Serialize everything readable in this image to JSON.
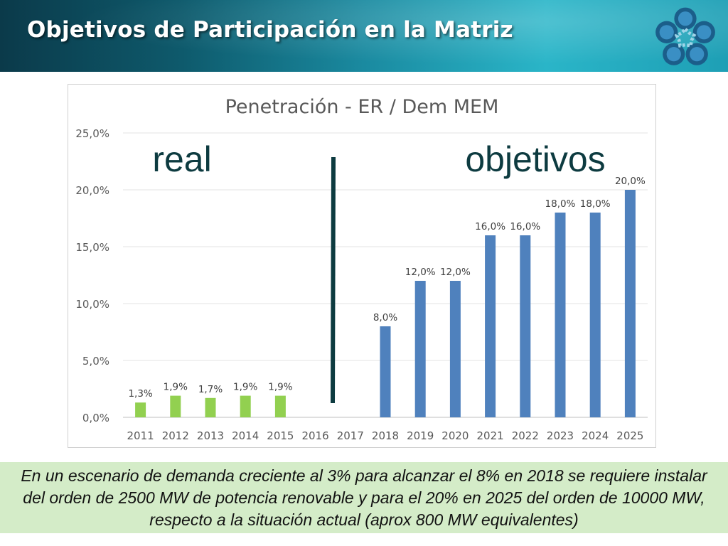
{
  "slide": {
    "title": "Objetivos de Participación en la Matriz",
    "note": "En un escenario de demanda creciente al 3% para alcanzar el 8% en 2018  se requiere instalar del orden de 2500 MW de potencia renovable y para el 20% en 2025 del orden de 10000 MW, respecto a la situación actual (aprox 800 MW equivalentes)"
  },
  "logo": {
    "icon": "star-flower-logo-icon",
    "colors": [
      "#1b5e8a",
      "#3a8fc4",
      "#9fd4e8"
    ]
  },
  "colors": {
    "header_dark": "#0b3a4a",
    "header_light": "#2ab5c8",
    "real_bars": "#92d050",
    "target_bars": "#4f81bd",
    "annotation_text": "#0d3b40",
    "divider": "#0d3b40",
    "note_bg": "#d4ecc8"
  },
  "chart_data": {
    "type": "bar",
    "title": "Penetración - ER / Dem MEM",
    "xlabel": "",
    "ylabel": "",
    "ylim": [
      0,
      25
    ],
    "yticks": [
      0,
      5,
      10,
      15,
      20,
      25
    ],
    "ytick_labels": [
      "0,0%",
      "5,0%",
      "10,0%",
      "15,0%",
      "20,0%",
      "25,0%"
    ],
    "grid": true,
    "legend": "none",
    "categories": [
      "2011",
      "2012",
      "2013",
      "2014",
      "2015",
      "2016",
      "2017",
      "2018",
      "2019",
      "2020",
      "2021",
      "2022",
      "2023",
      "2024",
      "2025"
    ],
    "values": [
      1.3,
      1.9,
      1.7,
      1.9,
      1.9,
      null,
      null,
      8.0,
      12.0,
      12.0,
      16.0,
      16.0,
      18.0,
      18.0,
      20.0
    ],
    "data_labels": [
      "1,3%",
      "1,9%",
      "1,7%",
      "1,9%",
      "1,9%",
      "",
      "",
      "8,0%",
      "12,0%",
      "12,0%",
      "16,0%",
      "16,0%",
      "18,0%",
      "18,0%",
      "20,0%"
    ],
    "groups": [
      "real",
      "real",
      "real",
      "real",
      "real",
      "",
      "",
      "objetivos",
      "objetivos",
      "objetivos",
      "objetivos",
      "objetivos",
      "objetivos",
      "objetivos",
      "objetivos"
    ],
    "annotations": {
      "left": "real",
      "right": "objetivos"
    }
  }
}
